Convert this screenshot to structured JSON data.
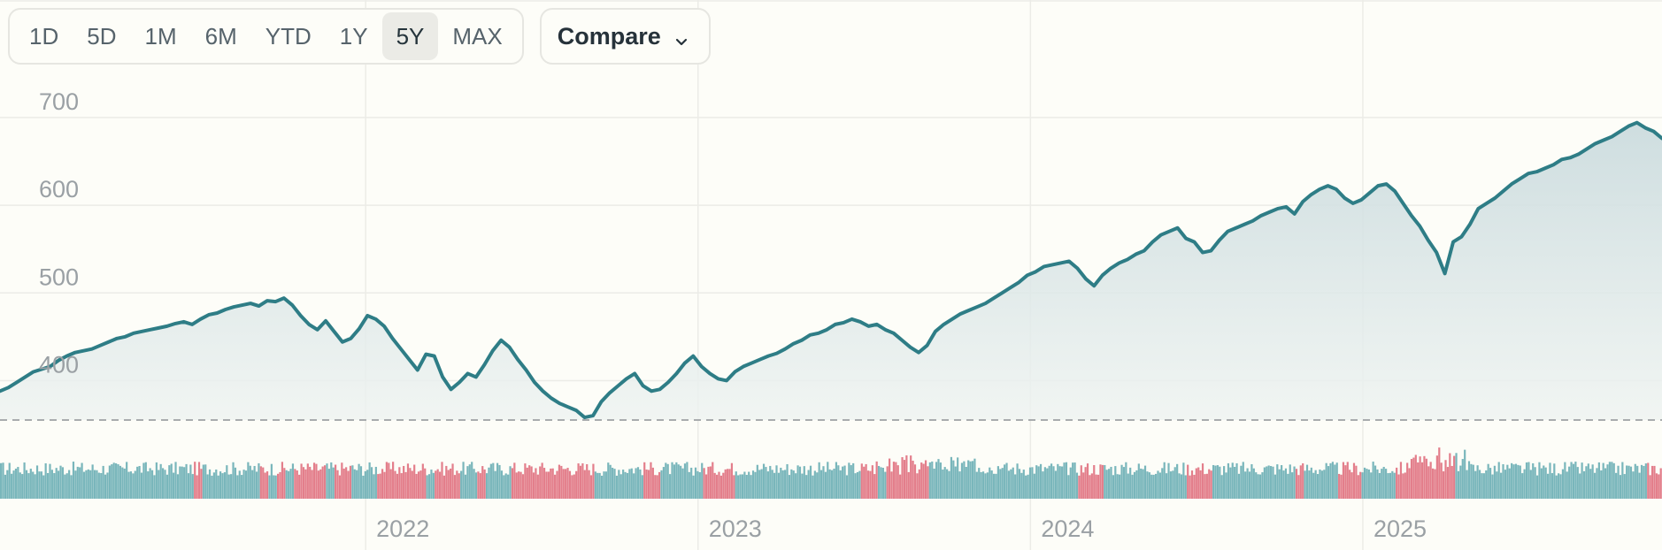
{
  "toolbar": {
    "ranges": [
      "1D",
      "5D",
      "1M",
      "6M",
      "YTD",
      "1Y",
      "5Y",
      "MAX"
    ],
    "active_range": "5Y",
    "compare_label": "Compare"
  },
  "colors": {
    "line": "#2e7d86",
    "area_top": "#cfdfe0",
    "volume_up": "#6aaeb4",
    "volume_down": "#e0707e",
    "baseline": "#a9acae"
  },
  "chart_data": {
    "type": "area",
    "y_ticks": [
      400,
      500,
      600,
      700
    ],
    "ylim": [
      330,
      720
    ],
    "x_ticks": [
      "2022",
      "2023",
      "2024",
      "2025"
    ],
    "x_ticks_fraction_of_range": [
      0.22,
      0.42,
      0.62,
      0.82
    ],
    "baseline_value": 337,
    "series": [
      {
        "values": [
          370,
          374,
          380,
          386,
          392,
          395,
          398,
          405,
          410,
          414,
          416,
          418,
          422,
          426,
          430,
          432,
          436,
          438,
          440,
          442,
          444,
          447,
          449,
          446,
          452,
          457,
          459,
          463,
          466,
          468,
          470,
          467,
          473,
          472,
          476,
          468,
          456,
          446,
          440,
          450,
          438,
          426,
          430,
          441,
          456,
          452,
          444,
          430,
          418,
          406,
          394,
          412,
          410,
          386,
          372,
          380,
          390,
          386,
          400,
          416,
          428,
          420,
          406,
          394,
          380,
          370,
          362,
          356,
          352,
          348,
          340,
          342,
          358,
          368,
          376,
          384,
          390,
          376,
          370,
          372,
          380,
          390,
          402,
          410,
          398,
          390,
          384,
          382,
          392,
          398,
          402,
          406,
          410,
          413,
          418,
          424,
          428,
          434,
          436,
          440,
          446,
          448,
          452,
          449,
          444,
          446,
          440,
          436,
          428,
          420,
          414,
          422,
          438,
          446,
          452,
          458,
          462,
          466,
          470,
          476,
          482,
          488,
          494,
          502,
          506,
          512,
          514,
          516,
          518,
          510,
          498,
          490,
          502,
          510,
          516,
          520,
          526,
          530,
          540,
          548,
          552,
          556,
          544,
          540,
          528,
          530,
          542,
          552,
          556,
          560,
          564,
          570,
          574,
          578,
          580,
          572,
          586,
          594,
          600,
          604,
          600,
          590,
          584,
          588,
          596,
          604,
          606,
          598,
          584,
          570,
          558,
          542,
          528,
          504,
          540,
          546,
          560,
          578,
          584,
          590,
          598,
          606,
          612,
          618,
          620,
          624,
          628,
          634,
          636,
          640,
          646,
          652,
          656,
          660,
          666,
          672,
          676,
          670,
          666,
          658
        ]
      }
    ]
  }
}
